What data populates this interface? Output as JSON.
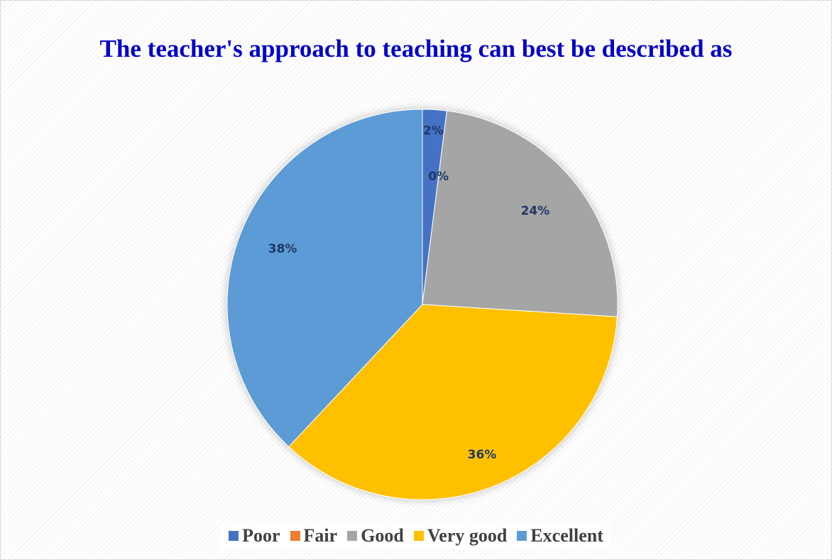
{
  "chart_data": {
    "type": "pie",
    "title": "The teacher's approach to teaching can best be described as",
    "categories": [
      "Poor",
      "Fair",
      "Good",
      "Very good",
      "Excellent"
    ],
    "values": [
      2,
      0,
      24,
      36,
      38
    ],
    "value_labels": [
      "2%",
      "0%",
      "24%",
      "36%",
      "38%"
    ],
    "colors": [
      "#4472c4",
      "#ed7d31",
      "#a5a5a5",
      "#ffc000",
      "#5b9bd5"
    ],
    "legend": "bottom"
  }
}
